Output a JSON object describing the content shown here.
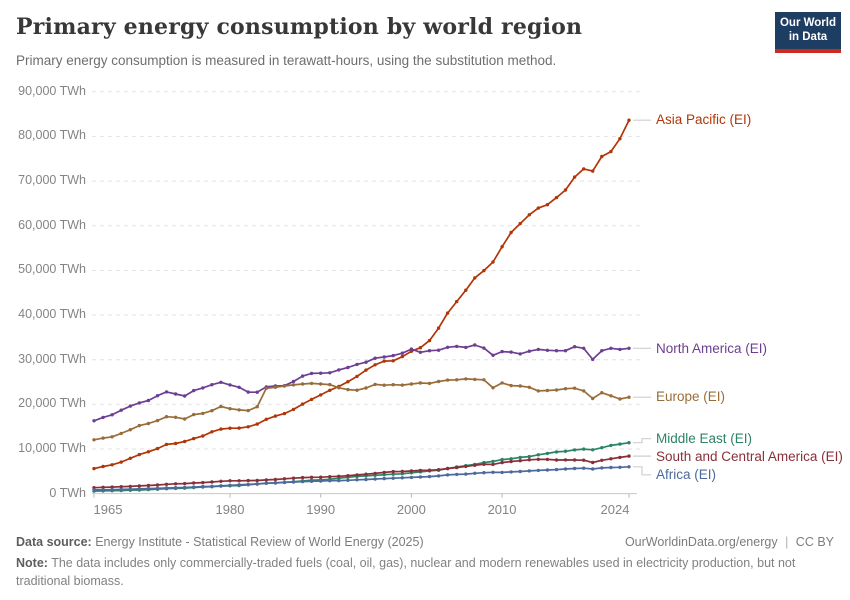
{
  "header": {
    "title": "Primary energy consumption by world region",
    "subtitle": "Primary energy consumption is measured in terawatt-hours, using the substitution method.",
    "logo": {
      "line1": "Our World",
      "line2": "in Data",
      "bg_color": "#1d3d63",
      "bar_color": "#cb2a1d"
    }
  },
  "chart_data": {
    "type": "line",
    "title": "Primary energy consumption by world region",
    "unit": "TWh",
    "xlabel": "",
    "ylabel": "",
    "xlim": [
      1965,
      2024
    ],
    "ylim": [
      0,
      90000
    ],
    "grid": "dashed-horizontal",
    "legend_position": "right",
    "xticks": [
      1965,
      1980,
      1990,
      2000,
      2010,
      2024
    ],
    "yticks": [
      {
        "value": 0,
        "label": "0 TWh"
      },
      {
        "value": 10000,
        "label": "10,000 TWh"
      },
      {
        "value": 20000,
        "label": "20,000 TWh"
      },
      {
        "value": 30000,
        "label": "30,000 TWh"
      },
      {
        "value": 40000,
        "label": "40,000 TWh"
      },
      {
        "value": 50000,
        "label": "50,000 TWh"
      },
      {
        "value": 60000,
        "label": "60,000 TWh"
      },
      {
        "value": 70000,
        "label": "70,000 TWh"
      },
      {
        "value": 80000,
        "label": "80,000 TWh"
      },
      {
        "value": 90000,
        "label": "90,000 TWh"
      }
    ],
    "years": [
      1965,
      1966,
      1967,
      1968,
      1969,
      1970,
      1971,
      1972,
      1973,
      1974,
      1975,
      1976,
      1977,
      1978,
      1979,
      1980,
      1981,
      1982,
      1983,
      1984,
      1985,
      1986,
      1987,
      1988,
      1989,
      1990,
      1991,
      1992,
      1993,
      1994,
      1995,
      1996,
      1997,
      1998,
      1999,
      2000,
      2001,
      2002,
      2003,
      2004,
      2005,
      2006,
      2007,
      2008,
      2009,
      2010,
      2011,
      2012,
      2013,
      2014,
      2015,
      2016,
      2017,
      2018,
      2019,
      2020,
      2021,
      2022,
      2023,
      2024
    ],
    "series": [
      {
        "name": "Asia Pacific (EI)",
        "color": "#B13507",
        "values": [
          5590,
          6060,
          6440,
          7050,
          7900,
          8740,
          9360,
          10080,
          11010,
          11220,
          11660,
          12310,
          12900,
          13850,
          14440,
          14660,
          14680,
          14970,
          15560,
          16640,
          17350,
          17930,
          18870,
          20050,
          21090,
          22110,
          23130,
          24000,
          25070,
          26250,
          27660,
          28850,
          29690,
          29750,
          30680,
          31880,
          32680,
          34280,
          37070,
          40420,
          43000,
          45560,
          48320,
          49960,
          51880,
          55310,
          58490,
          60480,
          62460,
          63960,
          64720,
          66300,
          68010,
          70890,
          72740,
          72230,
          75500,
          76600,
          79500,
          83640
        ]
      },
      {
        "name": "North America (EI)",
        "color": "#6D3E91",
        "values": [
          16310,
          17060,
          17660,
          18680,
          19590,
          20320,
          20850,
          21940,
          22780,
          22320,
          21870,
          23080,
          23680,
          24400,
          24920,
          24340,
          23800,
          22740,
          22720,
          23900,
          24110,
          24160,
          25110,
          26310,
          26920,
          26960,
          27060,
          27710,
          28240,
          28940,
          29440,
          30330,
          30600,
          30920,
          31440,
          32370,
          31650,
          32000,
          32110,
          32770,
          32980,
          32750,
          33290,
          32590,
          30970,
          31800,
          31700,
          31300,
          31900,
          32300,
          32100,
          32000,
          32000,
          32900,
          32550,
          30050,
          32000,
          32550,
          32300,
          32550
        ]
      },
      {
        "name": "Europe (EI)",
        "color": "#996D39",
        "values": [
          12060,
          12440,
          12720,
          13480,
          14320,
          15240,
          15710,
          16350,
          17220,
          17090,
          16710,
          17700,
          17960,
          18560,
          19500,
          19020,
          18750,
          18600,
          19460,
          23580,
          23800,
          24100,
          24340,
          24560,
          24690,
          24550,
          24420,
          23700,
          23300,
          23170,
          23650,
          24450,
          24280,
          24390,
          24300,
          24540,
          24770,
          24690,
          25120,
          25430,
          25500,
          25690,
          25570,
          25500,
          23700,
          24800,
          24200,
          24100,
          23800,
          23000,
          23100,
          23200,
          23500,
          23600,
          23000,
          21300,
          22600,
          21900,
          21200,
          21600
        ]
      },
      {
        "name": "Middle East (EI)",
        "color": "#2C8465",
        "values": [
          550,
          600,
          640,
          700,
          760,
          810,
          890,
          990,
          1100,
          1160,
          1230,
          1370,
          1480,
          1540,
          1690,
          1750,
          1820,
          1960,
          2150,
          2320,
          2370,
          2510,
          2660,
          2820,
          3000,
          3090,
          3210,
          3450,
          3650,
          3850,
          3960,
          4090,
          4230,
          4350,
          4440,
          4650,
          4850,
          5080,
          5250,
          5600,
          5960,
          6240,
          6530,
          6940,
          7210,
          7610,
          7790,
          8110,
          8290,
          8700,
          9000,
          9350,
          9480,
          9790,
          9960,
          9800,
          10280,
          10790,
          11090,
          11400
        ]
      },
      {
        "name": "South and Central America (EI)",
        "color": "#883039",
        "values": [
          1330,
          1400,
          1450,
          1540,
          1620,
          1730,
          1810,
          1930,
          2080,
          2190,
          2250,
          2370,
          2460,
          2600,
          2760,
          2870,
          2870,
          2910,
          2940,
          3070,
          3150,
          3320,
          3440,
          3580,
          3640,
          3680,
          3790,
          3880,
          4020,
          4190,
          4350,
          4520,
          4750,
          4920,
          4950,
          5070,
          5190,
          5250,
          5350,
          5620,
          5830,
          6090,
          6350,
          6570,
          6550,
          6950,
          7180,
          7370,
          7580,
          7680,
          7660,
          7530,
          7550,
          7520,
          7480,
          6960,
          7470,
          7790,
          8100,
          8400
        ]
      },
      {
        "name": "Africa (EI)",
        "color": "#4C6A9C",
        "values": [
          830,
          860,
          880,
          940,
          990,
          1060,
          1120,
          1180,
          1260,
          1330,
          1370,
          1460,
          1560,
          1630,
          1750,
          1860,
          1970,
          2060,
          2160,
          2310,
          2430,
          2500,
          2600,
          2690,
          2760,
          2820,
          2880,
          2920,
          2990,
          3080,
          3160,
          3260,
          3350,
          3440,
          3530,
          3620,
          3710,
          3810,
          3960,
          4180,
          4300,
          4370,
          4540,
          4680,
          4760,
          4750,
          4850,
          4960,
          5080,
          5200,
          5280,
          5380,
          5500,
          5620,
          5700,
          5500,
          5750,
          5850,
          5900,
          6000
        ]
      }
    ]
  },
  "footer": {
    "data_source_label": "Data source:",
    "data_source": "Energy Institute - Statistical Review of World Energy (2025)",
    "attribution_url": "OurWorldinData.org/energy",
    "attribution_sep": "|",
    "attribution_license": "CC BY",
    "note_label": "Note:",
    "note": "The data includes only commercially-traded fuels (coal, oil, gas), nuclear and modern renewables used in electricity production, but not traditional biomass."
  }
}
